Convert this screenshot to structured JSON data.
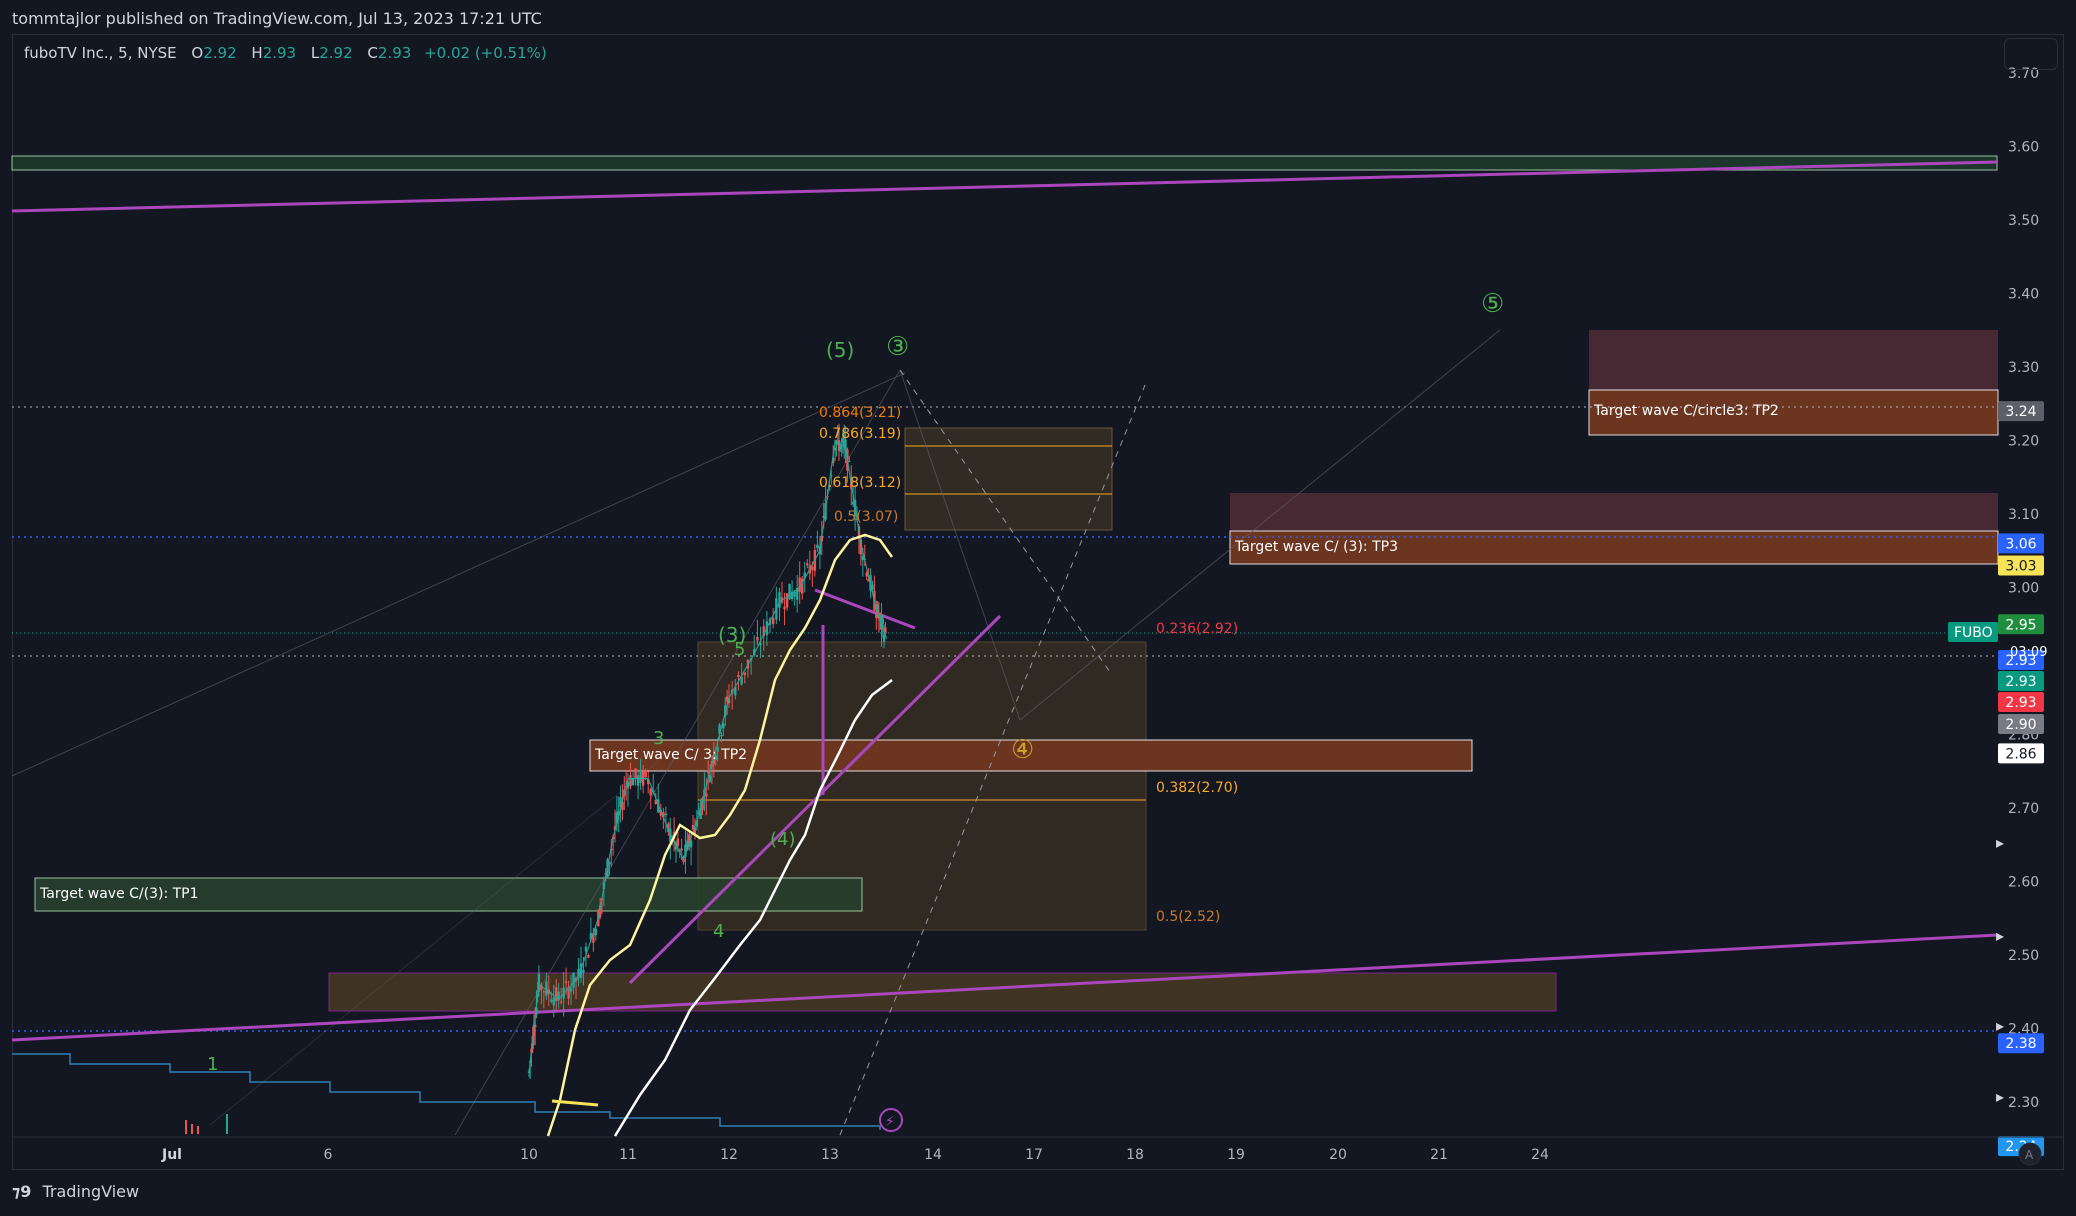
{
  "header": {
    "publisher": "tommtajlor published on TradingView.com, Jul 13, 2023 17:21 UTC"
  },
  "legend": {
    "symbol": "fuboTV Inc., 5, NYSE",
    "o_label": "O",
    "o": "2.92",
    "h_label": "H",
    "h": "2.93",
    "l_label": "L",
    "l": "2.92",
    "c_label": "C",
    "c": "2.93",
    "change": "+0.02 (+0.51%)"
  },
  "footer": {
    "brand": "TradingView",
    "auto_label": "A"
  },
  "chart_data": {
    "type": "candlestick",
    "symbol": "FUBO",
    "interval": "5",
    "exchange": "NYSE",
    "ylim": [
      2.22,
      3.72
    ],
    "y_ticks": [
      2.3,
      2.4,
      2.5,
      2.6,
      2.7,
      2.8,
      2.9,
      3.0,
      3.1,
      3.2,
      3.3,
      3.4,
      3.5,
      3.6,
      3.7
    ],
    "x_ticks": [
      "Jul",
      "6",
      "10",
      "11",
      "12",
      "13",
      "14",
      "17",
      "18",
      "19",
      "20",
      "21",
      "24"
    ],
    "current_price": 2.93,
    "countdown": "03:09",
    "price_series": [
      [
        10.0,
        2.34
      ],
      [
        10.1,
        2.46
      ],
      [
        10.3,
        2.44
      ],
      [
        10.5,
        2.47
      ],
      [
        10.7,
        2.55
      ],
      [
        10.85,
        2.66
      ],
      [
        11.0,
        2.74
      ],
      [
        11.2,
        2.74
      ],
      [
        11.4,
        2.67
      ],
      [
        11.55,
        2.63
      ],
      [
        11.7,
        2.69
      ],
      [
        11.85,
        2.77
      ],
      [
        12.0,
        2.85
      ],
      [
        12.25,
        2.91
      ],
      [
        12.5,
        2.98
      ],
      [
        12.7,
        3.0
      ],
      [
        12.9,
        3.05
      ],
      [
        13.05,
        3.2
      ],
      [
        13.15,
        3.19
      ],
      [
        13.3,
        3.06
      ],
      [
        13.45,
        2.97
      ],
      [
        13.55,
        2.93
      ]
    ],
    "price_labels": [
      {
        "value": 3.24,
        "color": "#5d606b"
      },
      {
        "value": 3.06,
        "color": "#2962ff"
      },
      {
        "value": 3.03,
        "color": "#f7e358"
      },
      {
        "value": 2.95,
        "color": "#1e8e3e"
      },
      {
        "value": 2.93,
        "color": "#2962ff"
      },
      {
        "value": 2.93,
        "color": "#089981"
      },
      {
        "value": 2.93,
        "color": "#f23645"
      },
      {
        "value": 2.9,
        "color": "#787b86"
      },
      {
        "value": 2.86,
        "color": "#ffffff"
      },
      {
        "value": 2.38,
        "color": "#2962ff"
      },
      {
        "value": 2.24,
        "color": "#2196f3"
      }
    ],
    "fib_levels": [
      {
        "label": "0.864(3.21)",
        "value": 3.21
      },
      {
        "label": "0.786(3.19)",
        "value": 3.19
      },
      {
        "label": "0.618(3.12)",
        "value": 3.12
      },
      {
        "label": "0.5(3.07)",
        "value": 3.07
      },
      {
        "label": "0.236(2.92)",
        "value": 2.92
      },
      {
        "label": "0.382(2.70)",
        "value": 2.7
      },
      {
        "label": "0.5(2.52)",
        "value": 2.52
      }
    ],
    "targets": [
      {
        "label": "Target wave C/circle3: TP2",
        "value": 3.24
      },
      {
        "label": "Target wave C/ (3): TP3",
        "value": 3.03
      },
      {
        "label": "Target wave C/ 3: TP2",
        "value": 2.78
      },
      {
        "label": "Target wave C/(3): TP1",
        "value": 2.59
      }
    ],
    "wave_labels": [
      "1",
      "3",
      "4",
      "5",
      "(3)",
      "(4)",
      "(5)",
      "③",
      "④",
      "⑤"
    ]
  }
}
